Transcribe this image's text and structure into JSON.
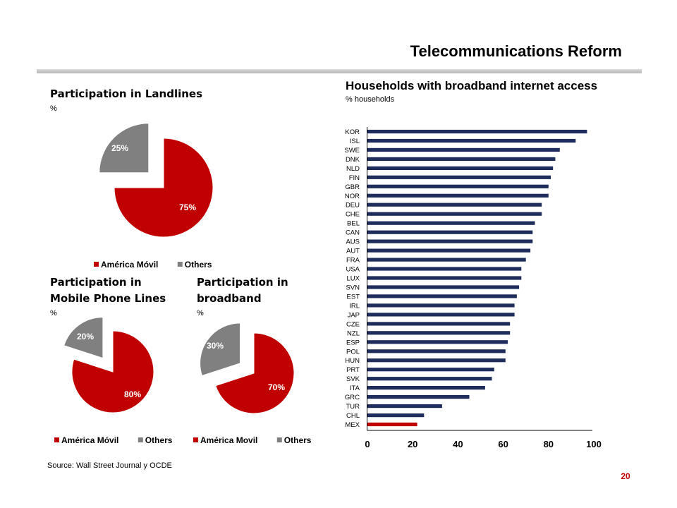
{
  "slide": {
    "title": "Telecommunications Reform",
    "source": "Source: Wall Street Journal y OCDE",
    "page_number": "20"
  },
  "colors": {
    "america_movil": "#c00000",
    "others": "#808080",
    "bars": "#1f2d5c",
    "mexico": "#c00000",
    "page_number": "#c00000"
  },
  "chart_data": [
    {
      "type": "pie",
      "title": "Participation in Landlines",
      "unit": "%",
      "slices": [
        {
          "name": "América Móvil",
          "value": 75,
          "label": "75%"
        },
        {
          "name": "Others",
          "value": 25,
          "label": "25%"
        }
      ],
      "exploded_slice": "Others",
      "legend": {
        "placement": "bottom",
        "items": [
          "América Móvil",
          "Others"
        ]
      }
    },
    {
      "type": "pie",
      "title": "Participation in Mobile Phone Lines",
      "unit": "%",
      "slices": [
        {
          "name": "América Móvil",
          "value": 80,
          "label": "80%"
        },
        {
          "name": "Others",
          "value": 20,
          "label": "20%"
        }
      ],
      "exploded_slice": "Others",
      "legend": {
        "placement": "bottom",
        "items": [
          "América Móvil",
          "Others"
        ]
      }
    },
    {
      "type": "pie",
      "title": "Participation in broadband",
      "unit": "%",
      "slices": [
        {
          "name": "América Movil",
          "value": 70,
          "label": "70%"
        },
        {
          "name": "Others",
          "value": 30,
          "label": "30%"
        }
      ],
      "exploded_slice": "Others",
      "legend": {
        "placement": "bottom",
        "items": [
          "América Movil",
          "Others"
        ]
      }
    },
    {
      "type": "bar",
      "orientation": "horizontal",
      "title": "Households with broadband internet access",
      "subtitle": "% households",
      "categories": [
        "KOR",
        "ISL",
        "SWE",
        "DNK",
        "NLD",
        "FIN",
        "GBR",
        "NOR",
        "DEU",
        "CHE",
        "BEL",
        "CAN",
        "AUS",
        "AUT",
        "FRA",
        "USA",
        "LUX",
        "SVN",
        "EST",
        "IRL",
        "JAP",
        "CZE",
        "NZL",
        "ESP",
        "POL",
        "HUN",
        "PRT",
        "SVK",
        "ITA",
        "GRC",
        "TUR",
        "CHL",
        "MEX"
      ],
      "values": [
        97,
        92,
        85,
        83,
        82,
        81,
        80,
        80,
        77,
        77,
        74,
        73,
        73,
        72,
        70,
        68,
        68,
        67,
        66,
        65,
        65,
        63,
        63,
        62,
        61,
        61,
        56,
        55,
        52,
        45,
        33,
        25,
        22
      ],
      "highlight": "MEX",
      "xlim": [
        0,
        100
      ],
      "xticks": [
        "0",
        "20",
        "40",
        "60",
        "80",
        "100"
      ],
      "grid": false,
      "legend": "none"
    }
  ]
}
